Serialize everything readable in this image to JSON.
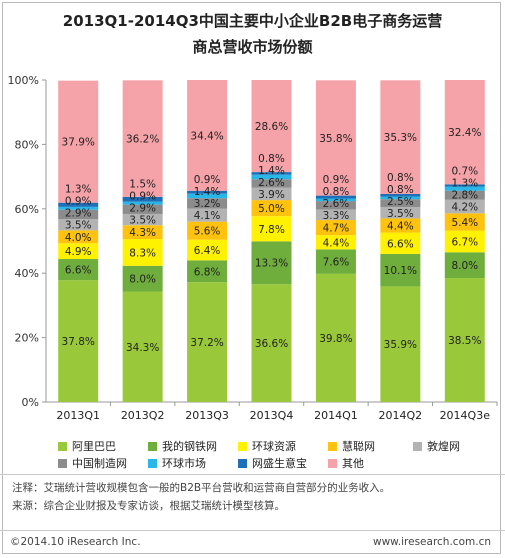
{
  "title_line1": "2013Q1-2014Q3中国主要中小企业B2B电子商务运营",
  "title_line2": "商总营收市场份额",
  "note": "注释：艾瑞统计营收规模包含一般的B2B平台营收和运营商自营部分的业务收入。",
  "source": "来源：综合企业财报及专家访谈，根据艾瑞统计模型核算。",
  "copyright": "©2014.10 iResearch Inc.",
  "website": "www.iresearch.com.cn",
  "chart_data": {
    "type": "bar",
    "stacked": true,
    "categories": [
      "2013Q1",
      "2013Q2",
      "2013Q3",
      "2013Q4",
      "2014Q1",
      "2014Q2",
      "2014Q3e"
    ],
    "ylim": [
      0,
      100
    ],
    "yticks": [
      "0%",
      "20%",
      "40%",
      "60%",
      "80%",
      "100%"
    ],
    "grid": false,
    "legend_position": "bottom",
    "series": [
      {
        "name": "阿里巴巴",
        "color": "#99c93a",
        "values": [
          37.8,
          34.3,
          37.2,
          36.6,
          39.8,
          35.9,
          38.5
        ]
      },
      {
        "name": "我的钢铁网",
        "color": "#6fae3c",
        "values": [
          6.6,
          8.0,
          6.8,
          13.3,
          7.6,
          10.1,
          8.0
        ]
      },
      {
        "name": "环球资源",
        "color": "#fff200",
        "values": [
          4.9,
          8.3,
          6.4,
          7.8,
          4.4,
          6.6,
          6.7
        ]
      },
      {
        "name": "慧聪网",
        "color": "#ffc20e",
        "values": [
          4.0,
          4.3,
          5.6,
          5.0,
          4.7,
          4.4,
          5.4
        ]
      },
      {
        "name": "敦煌网",
        "color": "#b3b3b3",
        "values": [
          3.5,
          3.5,
          4.1,
          3.9,
          3.3,
          3.5,
          4.2
        ]
      },
      {
        "name": "中国制造网",
        "color": "#8c8c8c",
        "values": [
          2.9,
          2.9,
          3.2,
          2.6,
          2.6,
          2.5,
          2.8
        ]
      },
      {
        "name": "环球市场",
        "color": "#29b6e8",
        "values": [
          0.9,
          0.9,
          1.4,
          1.4,
          0.8,
          0.8,
          1.3
        ]
      },
      {
        "name": "网盛生意宝",
        "color": "#1f6fb8",
        "values": [
          1.3,
          1.5,
          0.9,
          0.8,
          0.9,
          0.8,
          0.7
        ]
      },
      {
        "name": "其他",
        "color": "#f5a3a9",
        "values": [
          37.9,
          36.2,
          34.4,
          28.6,
          35.8,
          35.3,
          32.4
        ]
      }
    ]
  }
}
